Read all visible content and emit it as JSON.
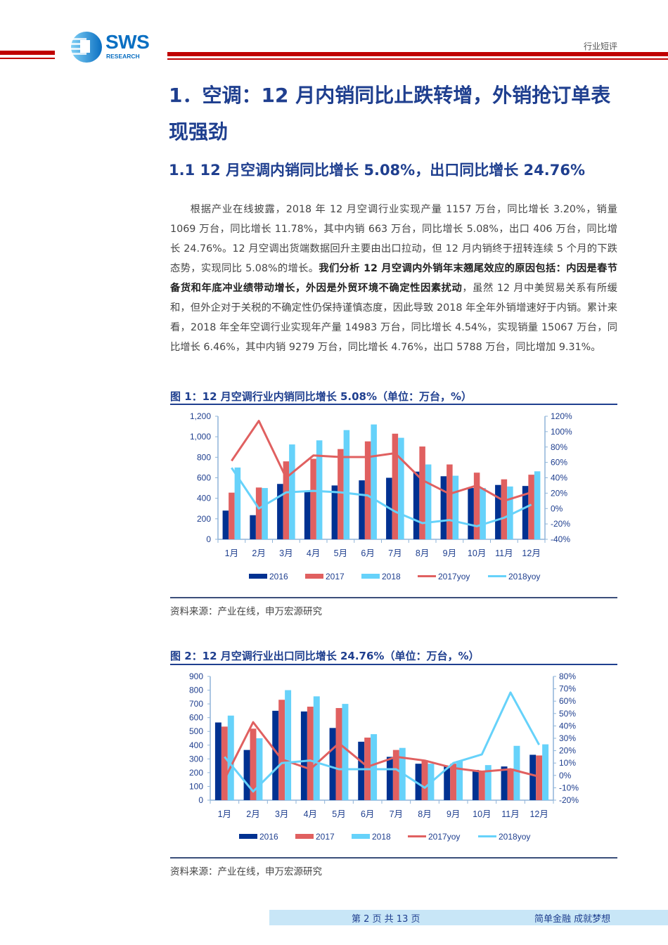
{
  "header": {
    "logo_text": "SWS",
    "logo_subtext": "RESEARCH",
    "doc_type": "行业短评",
    "brand_color": "#c00000"
  },
  "section": {
    "h1": "1．空调：12 月内销同比止跌转增，外销抢订单表现强劲",
    "h2": "1.1 12 月空调内销同比增长 5.08%，出口同比增长 24.76%"
  },
  "body": {
    "part1": "根据产业在线披露，2018 年 12 月空调行业实现产量 1157 万台，同比增长 3.20%，销量 1069 万台，同比增长 11.78%，其中内销 663 万台，同比增长 5.08%，出口 406 万台，同比增长 24.76%。12 月空调出货端数据回升主要由出口拉动，但 12 月内销终于扭转连续 5 个月的下跌态势，实现同比 5.08%的增长。",
    "bold": "我们分析 12 月空调内外销年末翘尾效应的原因包括：内因是春节备货和年底冲业绩带动增长，外因是外贸环境不确定性因素扰动",
    "part2": "，虽然 12 月中美贸易关系有所缓和，但外企对于关税的不确定性仍保持谨慎态度，因此导致 2018 年全年外销增速好于内销。累计来看，2018 年全年空调行业实现年产量 14983 万台，同比增长 4.54%，实现销量 15067 万台，同比增长 6.46%，其中内销 9279 万台，同比增长 4.76%，出口 5788 万台，同比增加 9.31%。"
  },
  "figures": [
    {
      "title": "图 1：12 月空调行业内销同比增长 5.08%（单位：万台，%）",
      "source": "资料来源：产业在线，申万宏源研究"
    },
    {
      "title": "图 2：12 月空调行业出口同比增长 24.76%（单位：万台，%）",
      "source": "资料来源：产业在线，申万宏源研究"
    }
  ],
  "colors": {
    "s2016": "#003191",
    "s2017": "#e06060",
    "s2018": "#66d2fa",
    "axis": "#8fb4d9",
    "tick_text": "#1f3f8f"
  },
  "chart_data": [
    {
      "type": "bar",
      "title": "图 1：12 月空调行业内销同比增长 5.08%（单位：万台，%）",
      "categories": [
        "1月",
        "2月",
        "3月",
        "4月",
        "5月",
        "6月",
        "7月",
        "8月",
        "9月",
        "10月",
        "11月",
        "12月"
      ],
      "series": [
        {
          "name": "2016",
          "type": "bar",
          "axis": "left",
          "values": [
            280,
            235,
            540,
            465,
            525,
            575,
            600,
            660,
            615,
            500,
            530,
            520
          ]
        },
        {
          "name": "2017",
          "type": "bar",
          "axis": "left",
          "values": [
            455,
            505,
            760,
            785,
            880,
            955,
            1030,
            905,
            730,
            650,
            585,
            630
          ]
        },
        {
          "name": "2018",
          "type": "bar",
          "axis": "left",
          "values": [
            700,
            500,
            925,
            965,
            1065,
            1120,
            990,
            730,
            620,
            500,
            515,
            663
          ]
        },
        {
          "name": "2017yoy",
          "type": "line",
          "axis": "right",
          "values": [
            62,
            114,
            40,
            69,
            67,
            67,
            72,
            37,
            19,
            30,
            10,
            21
          ]
        },
        {
          "name": "2018yoy",
          "type": "line",
          "axis": "right",
          "values": [
            53,
            0,
            21,
            23,
            21,
            17,
            -4,
            -19,
            -15,
            -23,
            -12,
            5.08
          ]
        }
      ],
      "ylim": [
        0,
        1200
      ],
      "yticks": [
        "0",
        "200",
        "400",
        "600",
        "800",
        "1,000",
        "1,200"
      ],
      "y2lim": [
        -40,
        120
      ],
      "y2ticks": [
        "-40%",
        "-20%",
        "0%",
        "20%",
        "40%",
        "60%",
        "80%",
        "100%",
        "120%"
      ],
      "legend": [
        "2016",
        "2017",
        "2018",
        "2017yoy",
        "2018yoy"
      ],
      "legend_position": "bottom",
      "grid": false
    },
    {
      "type": "bar",
      "title": "图 2：12 月空调行业出口同比增长 24.76%（单位：万台，%）",
      "categories": [
        "1月",
        "2月",
        "3月",
        "4月",
        "5月",
        "6月",
        "7月",
        "8月",
        "9月",
        "10月",
        "11月",
        "12月"
      ],
      "series": [
        {
          "name": "2016",
          "type": "bar",
          "axis": "left",
          "values": [
            565,
            365,
            650,
            645,
            525,
            425,
            315,
            265,
            250,
            220,
            245,
            330
          ]
        },
        {
          "name": "2017",
          "type": "bar",
          "axis": "left",
          "values": [
            535,
            520,
            730,
            680,
            670,
            455,
            365,
            290,
            265,
            215,
            230,
            325
          ]
        },
        {
          "name": "2018",
          "type": "bar",
          "axis": "left",
          "values": [
            615,
            450,
            800,
            755,
            700,
            480,
            380,
            265,
            285,
            255,
            395,
            406
          ]
        },
        {
          "name": "2017yoy",
          "type": "line",
          "axis": "right",
          "values": [
            -3,
            43,
            13,
            5,
            26,
            7,
            15,
            12,
            6,
            3,
            5,
            -1
          ]
        },
        {
          "name": "2018yoy",
          "type": "line",
          "axis": "right",
          "values": [
            15,
            -13,
            10,
            12,
            5,
            5,
            5,
            -10,
            10,
            17,
            67,
            24.76
          ]
        }
      ],
      "ylim": [
        0,
        900
      ],
      "yticks": [
        "0",
        "100",
        "200",
        "300",
        "400",
        "500",
        "600",
        "700",
        "800",
        "900"
      ],
      "y2lim": [
        -20,
        80
      ],
      "y2ticks": [
        "-20%",
        "-10%",
        "0%",
        "10%",
        "20%",
        "30%",
        "40%",
        "50%",
        "60%",
        "70%",
        "80%"
      ],
      "legend": [
        "2016",
        "2017",
        "2018",
        "2017yoy",
        "2018yoy"
      ],
      "legend_position": "bottom",
      "grid": false
    }
  ],
  "footer": {
    "page": "第 2 页 共 13 页",
    "slogan": "简单金融 成就梦想"
  }
}
